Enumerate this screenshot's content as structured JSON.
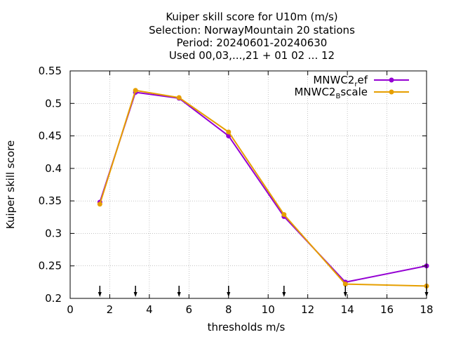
{
  "chart_data": {
    "type": "line",
    "title_lines": [
      "Kuiper skill score  for U10m (m/s)",
      "Selection: NorwayMountain     20 stations",
      "Period: 20240601-20240630",
      "Used 00,03,...,21 + 01 02 ... 12"
    ],
    "xlabel": "thresholds m/s",
    "ylabel": "Kuiper skill score",
    "xlim": [
      0,
      18
    ],
    "ylim": [
      0.2,
      0.55
    ],
    "xticks": [
      0,
      2,
      4,
      6,
      8,
      10,
      12,
      14,
      16,
      18
    ],
    "yticks": [
      0.2,
      0.25,
      0.3,
      0.35,
      0.4,
      0.45,
      0.5,
      0.55
    ],
    "xtick_labels": [
      "0",
      "2",
      "4",
      "6",
      "8",
      "10",
      "12",
      "14",
      "16",
      "18"
    ],
    "ytick_labels": [
      "0.2",
      "0.25",
      "0.3",
      "0.35",
      "0.4",
      "0.45",
      "0.5",
      "0.55"
    ],
    "grid": true,
    "legend_position": "top-right",
    "threshold_arrows_x": [
      1.5,
      3.3,
      5.5,
      8.0,
      10.8,
      13.9,
      18.0
    ],
    "series": [
      {
        "name": "MNWC2_ref",
        "legend_main": "MNWC2",
        "legend_sub": "r",
        "legend_rest": "ef",
        "color": "#9400d3",
        "x": [
          1.5,
          3.3,
          5.5,
          8.0,
          10.8,
          13.9,
          18.0
        ],
        "values": [
          0.348,
          0.517,
          0.508,
          0.45,
          0.326,
          0.225,
          0.25
        ]
      },
      {
        "name": "MNWC2_Bscale",
        "legend_main": "MNWC2",
        "legend_sub": "B",
        "legend_rest": "scale",
        "color": "#e69f00",
        "x": [
          1.5,
          3.3,
          5.5,
          8.0,
          10.8,
          13.9,
          18.0
        ],
        "values": [
          0.345,
          0.52,
          0.509,
          0.456,
          0.329,
          0.222,
          0.219
        ]
      }
    ]
  }
}
